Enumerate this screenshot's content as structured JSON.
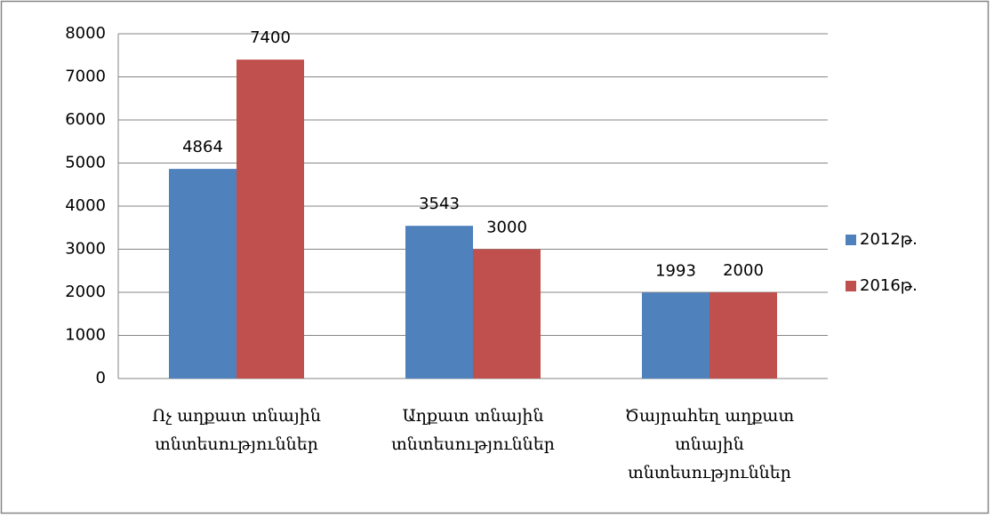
{
  "chart_data": {
    "type": "bar",
    "categories": [
      "Ոչ աղքատ տնային տնտեսություններ",
      "Աղքատ տնային տնտեսություններ",
      "Ծայրահեղ աղքատ տնային տնտեսություններ"
    ],
    "series": [
      {
        "name": "2012թ.",
        "color": "#4f81bd",
        "values": [
          4864,
          3543,
          1993
        ]
      },
      {
        "name": "2016թ.",
        "color": "#c0504d",
        "values": [
          7400,
          3000,
          2000
        ]
      }
    ],
    "ylim": [
      0,
      8000
    ],
    "yticks": [
      0,
      1000,
      2000,
      3000,
      4000,
      5000,
      6000,
      7000,
      8000
    ],
    "grid": true,
    "legend": "right"
  }
}
